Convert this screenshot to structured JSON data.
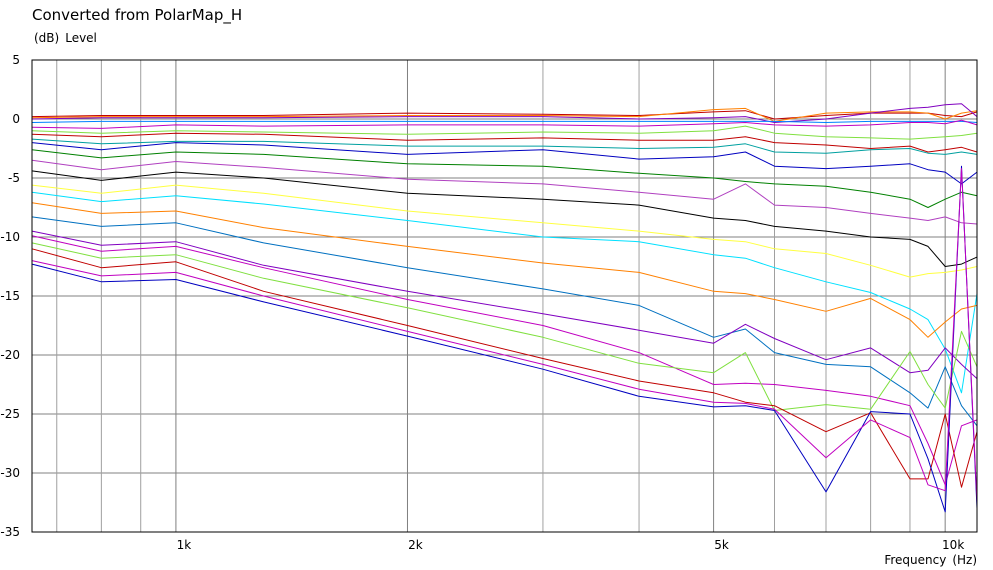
{
  "chart_data": {
    "type": "line",
    "title": "Converted from PolarMap_H",
    "ylabel": "Level",
    "yunit": "(dB)",
    "xlabel": "Frequency",
    "xunit": "(Hz)",
    "xscale": "log",
    "xlim": [
      650,
      11000
    ],
    "ylim": [
      -35,
      5
    ],
    "yticks": [
      5,
      0,
      -5,
      -10,
      -15,
      -20,
      -25,
      -30,
      -35
    ],
    "xticks": [
      {
        "value": 1000,
        "label": "1k"
      },
      {
        "value": 2000,
        "label": "2k"
      },
      {
        "value": 5000,
        "label": "5k"
      },
      {
        "value": 10000,
        "label": "10k"
      }
    ],
    "xgrid_minor": [
      700,
      800,
      900,
      3000,
      4000,
      6000,
      7000,
      8000,
      9000
    ],
    "grid": true,
    "legend": "none",
    "x": [
      650,
      800,
      1000,
      1300,
      2000,
      3000,
      4000,
      5000,
      5500,
      6000,
      7000,
      8000,
      9000,
      9500,
      10000,
      10500,
      11000
    ],
    "series": [
      {
        "color": "#c00000",
        "values": [
          0.2,
          0.3,
          0.3,
          0.3,
          0.5,
          0.4,
          0.3,
          0.6,
          0.7,
          0.0,
          0.3,
          0.5,
          0.5,
          0.5,
          0.3,
          0.2,
          0.6
        ]
      },
      {
        "color": "#ff8000",
        "values": [
          0.1,
          0.2,
          0.2,
          0.2,
          0.3,
          0.3,
          0.2,
          0.8,
          0.9,
          -0.2,
          0.5,
          0.6,
          0.6,
          0.5,
          0.0,
          0.5,
          0.7
        ]
      },
      {
        "color": "#8000c0",
        "values": [
          0.0,
          0.1,
          0.1,
          0.1,
          0.2,
          0.2,
          0.0,
          0.1,
          0.2,
          -0.3,
          0.0,
          0.5,
          0.9,
          1.0,
          1.2,
          1.3,
          0.2
        ]
      },
      {
        "color": "#0080ff",
        "values": [
          -0.3,
          -0.2,
          -0.2,
          -0.2,
          -0.2,
          -0.2,
          -0.2,
          -0.2,
          -0.2,
          -0.2,
          -0.3,
          -0.2,
          -0.2,
          -0.2,
          -0.2,
          -0.2,
          -0.3
        ]
      },
      {
        "color": "#c000c0",
        "values": [
          -0.7,
          -0.8,
          -0.5,
          -0.6,
          -0.5,
          -0.5,
          -0.6,
          -0.4,
          -0.3,
          -0.5,
          -0.6,
          -0.5,
          -0.3,
          -0.3,
          -0.4,
          -0.1,
          -0.5
        ]
      },
      {
        "color": "#80e040",
        "values": [
          -1.0,
          -1.2,
          -1.0,
          -1.1,
          -1.3,
          -1.1,
          -1.2,
          -1.0,
          -0.6,
          -1.2,
          -1.5,
          -1.6,
          -1.7,
          -1.6,
          -1.5,
          -1.4,
          -1.2
        ]
      },
      {
        "color": "#c00000",
        "values": [
          -1.3,
          -1.5,
          -1.2,
          -1.3,
          -1.8,
          -1.6,
          -1.8,
          -1.8,
          -1.5,
          -2.0,
          -2.2,
          -2.5,
          -2.3,
          -2.8,
          -2.6,
          -2.4,
          -2.8
        ]
      },
      {
        "color": "#00a0a0",
        "values": [
          -1.7,
          -2.1,
          -1.9,
          -1.9,
          -2.3,
          -2.3,
          -2.5,
          -2.4,
          -2.1,
          -2.8,
          -2.9,
          -2.6,
          -2.5,
          -2.9,
          -3.0,
          -2.8,
          -3.0
        ]
      },
      {
        "color": "#0000c0",
        "values": [
          -2.0,
          -2.6,
          -2.0,
          -2.2,
          -3.0,
          -2.6,
          -3.4,
          -3.2,
          -2.8,
          -4.0,
          -4.2,
          -4.0,
          -3.8,
          -4.3,
          -4.5,
          -5.5,
          -4.5
        ]
      },
      {
        "color": "#008000",
        "values": [
          -2.6,
          -3.3,
          -2.8,
          -3.0,
          -3.8,
          -4.0,
          -4.6,
          -5.0,
          -5.3,
          -5.5,
          -5.7,
          -6.2,
          -6.8,
          -7.5,
          -6.8,
          -6.2,
          -6.5
        ]
      },
      {
        "color": "#b040c0",
        "values": [
          -3.5,
          -4.3,
          -3.6,
          -4.1,
          -5.1,
          -5.5,
          -6.2,
          -6.8,
          -5.5,
          -7.3,
          -7.5,
          -8.0,
          -8.4,
          -8.6,
          -8.3,
          -8.8,
          -8.9
        ]
      },
      {
        "color": "#000000",
        "values": [
          -4.4,
          -5.2,
          -4.5,
          -5.0,
          -6.3,
          -6.8,
          -7.3,
          -8.4,
          -8.6,
          -9.1,
          -9.5,
          -10.0,
          -10.2,
          -10.8,
          -12.5,
          -12.3,
          -11.7
        ]
      },
      {
        "color": "#ffff40",
        "values": [
          -5.6,
          -6.3,
          -5.6,
          -6.3,
          -7.8,
          -8.8,
          -9.5,
          -10.2,
          -10.4,
          -11.0,
          -11.4,
          -12.4,
          -13.4,
          -13.1,
          -13.0,
          -12.8,
          -12.5
        ]
      },
      {
        "color": "#00e0ff",
        "values": [
          -6.2,
          -7.0,
          -6.5,
          -7.2,
          -8.6,
          -10.0,
          -10.4,
          -11.5,
          -11.8,
          -12.6,
          -13.8,
          -14.7,
          -16.1,
          -17.0,
          -19.5,
          -23.2,
          -14.8
        ]
      },
      {
        "color": "#ff8000",
        "values": [
          -7.1,
          -8.0,
          -7.8,
          -9.2,
          -10.8,
          -12.2,
          -13.0,
          -14.6,
          -14.8,
          -15.3,
          -16.3,
          -15.2,
          -17.0,
          -18.5,
          -17.2,
          -16.1,
          -15.8
        ]
      },
      {
        "color": "#0070c0",
        "values": [
          -8.3,
          -9.1,
          -8.8,
          -10.5,
          -12.6,
          -14.4,
          -15.8,
          -18.5,
          -17.8,
          -19.8,
          -20.8,
          -21.0,
          -23.2,
          -24.5,
          -21.0,
          -24.3,
          -26.0
        ]
      },
      {
        "color": "#8000c0",
        "values": [
          -9.5,
          -10.7,
          -10.4,
          -12.4,
          -14.6,
          -16.5,
          -17.9,
          -19.0,
          -17.4,
          -18.6,
          -20.4,
          -19.4,
          -21.5,
          -21.3,
          -19.4,
          -20.8,
          -22.0
        ]
      },
      {
        "color": "#c000c0",
        "values": [
          -9.9,
          -11.2,
          -10.8,
          -12.6,
          -15.3,
          -17.5,
          -19.8,
          -22.5,
          -22.4,
          -22.5,
          -23.0,
          -23.5,
          -24.3,
          -27.5,
          -31.0,
          -26.0,
          -25.5
        ]
      },
      {
        "color": "#80e040",
        "values": [
          -10.5,
          -11.8,
          -11.5,
          -13.5,
          -16.0,
          -18.5,
          -20.7,
          -21.5,
          -19.8,
          -24.7,
          -24.2,
          -24.6,
          -19.7,
          -22.5,
          -24.5,
          -18.0,
          -21.0
        ]
      },
      {
        "color": "#c00000",
        "values": [
          -11.0,
          -12.6,
          -12.1,
          -14.6,
          -17.5,
          -20.3,
          -22.2,
          -23.2,
          -24.0,
          -24.3,
          -26.5,
          -24.9,
          -30.5,
          -30.5,
          -25.0,
          -31.2,
          -26.5
        ]
      },
      {
        "color": "#0000c0",
        "values": [
          -12.3,
          -13.8,
          -13.6,
          -15.5,
          -18.4,
          -21.2,
          -23.5,
          -24.4,
          -24.3,
          -24.7,
          -31.6,
          -24.8,
          -25.0,
          -28.8,
          -33.3,
          -4.0,
          -33.0
        ]
      },
      {
        "color": "#c000c0",
        "values": [
          -12.0,
          -13.3,
          -13.0,
          -15.0,
          -18.0,
          -20.8,
          -22.9,
          -24.0,
          -24.1,
          -24.6,
          -28.7,
          -25.5,
          -27.0,
          -31.0,
          -31.5,
          -4.2,
          -32.5
        ]
      }
    ]
  }
}
